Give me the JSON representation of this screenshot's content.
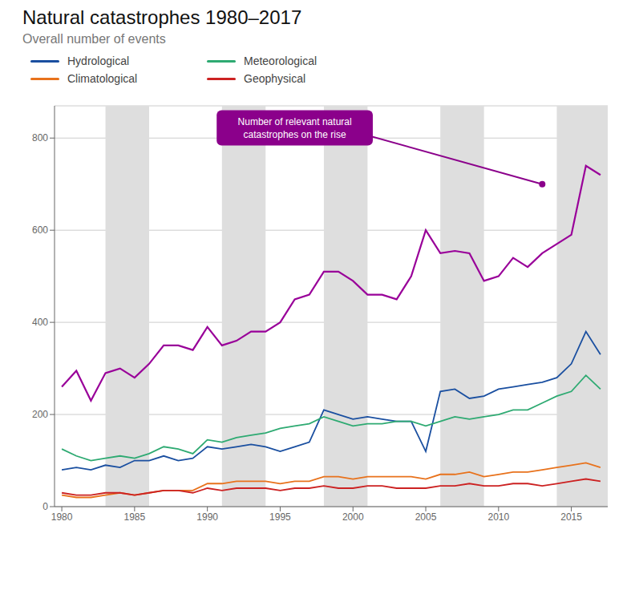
{
  "chart_data": {
    "type": "line",
    "title": "Natural catastrophes 1980–2017",
    "subtitle": "Overall number of events",
    "x": [
      1980,
      1981,
      1982,
      1983,
      1984,
      1985,
      1986,
      1987,
      1988,
      1989,
      1990,
      1991,
      1992,
      1993,
      1994,
      1995,
      1996,
      1997,
      1998,
      1999,
      2000,
      2001,
      2002,
      2003,
      2004,
      2005,
      2006,
      2007,
      2008,
      2009,
      2010,
      2011,
      2012,
      2013,
      2014,
      2015,
      2016,
      2017
    ],
    "series": [
      {
        "color": "#990099",
        "values": [
          260,
          295,
          230,
          290,
          300,
          280,
          310,
          350,
          350,
          340,
          390,
          350,
          360,
          380,
          380,
          400,
          450,
          460,
          510,
          510,
          490,
          460,
          460,
          450,
          500,
          600,
          550,
          555,
          550,
          490,
          500,
          540,
          520,
          550,
          570,
          590,
          740,
          720
        ]
      },
      {
        "name": "Hydrological",
        "color": "#1a4fa0",
        "values": [
          80,
          85,
          80,
          90,
          85,
          100,
          100,
          110,
          100,
          105,
          130,
          125,
          130,
          135,
          130,
          120,
          130,
          140,
          210,
          200,
          190,
          195,
          190,
          185,
          185,
          120,
          250,
          255,
          235,
          240,
          255,
          260,
          265,
          270,
          280,
          310,
          380,
          330
        ]
      },
      {
        "name": "Meteorological",
        "color": "#2eaa72",
        "values": [
          125,
          110,
          100,
          105,
          110,
          105,
          115,
          130,
          125,
          115,
          145,
          140,
          150,
          155,
          160,
          170,
          175,
          180,
          195,
          185,
          175,
          180,
          180,
          185,
          185,
          175,
          185,
          195,
          190,
          195,
          200,
          210,
          210,
          225,
          240,
          250,
          285,
          255
        ]
      },
      {
        "name": "Climatological",
        "color": "#e8721c",
        "values": [
          25,
          20,
          20,
          25,
          30,
          25,
          30,
          35,
          35,
          35,
          50,
          50,
          55,
          55,
          55,
          50,
          55,
          55,
          65,
          65,
          60,
          65,
          65,
          65,
          65,
          60,
          70,
          70,
          75,
          65,
          70,
          75,
          75,
          80,
          85,
          90,
          95,
          85
        ]
      },
      {
        "name": "Geophysical",
        "color": "#cc2222",
        "values": [
          30,
          25,
          25,
          30,
          30,
          25,
          30,
          35,
          35,
          30,
          40,
          35,
          40,
          40,
          40,
          35,
          40,
          40,
          45,
          40,
          40,
          45,
          45,
          40,
          40,
          40,
          45,
          45,
          50,
          45,
          45,
          50,
          50,
          45,
          50,
          55,
          60,
          55
        ]
      }
    ],
    "shaded_regions": [
      [
        1983,
        1986
      ],
      [
        1991,
        1994
      ],
      [
        1998,
        2001
      ],
      [
        2006,
        2009
      ],
      [
        2014,
        2017.5
      ]
    ],
    "shaded_color": "#dedede",
    "annotations": [
      {
        "text": "Number of relevant natural\ncatastrophes on the rise",
        "x": 1996,
        "y": 850,
        "xy": [
          2013,
          700
        ],
        "color": "#8b008b"
      }
    ],
    "xlim": [
      1979.5,
      2017.5
    ],
    "xticks": [
      1980,
      1985,
      1990,
      1995,
      2000,
      2005,
      2010,
      2015
    ],
    "ylim": [
      0,
      870
    ],
    "yticks": [
      0,
      200,
      400,
      600,
      800
    ],
    "grid": true
  }
}
